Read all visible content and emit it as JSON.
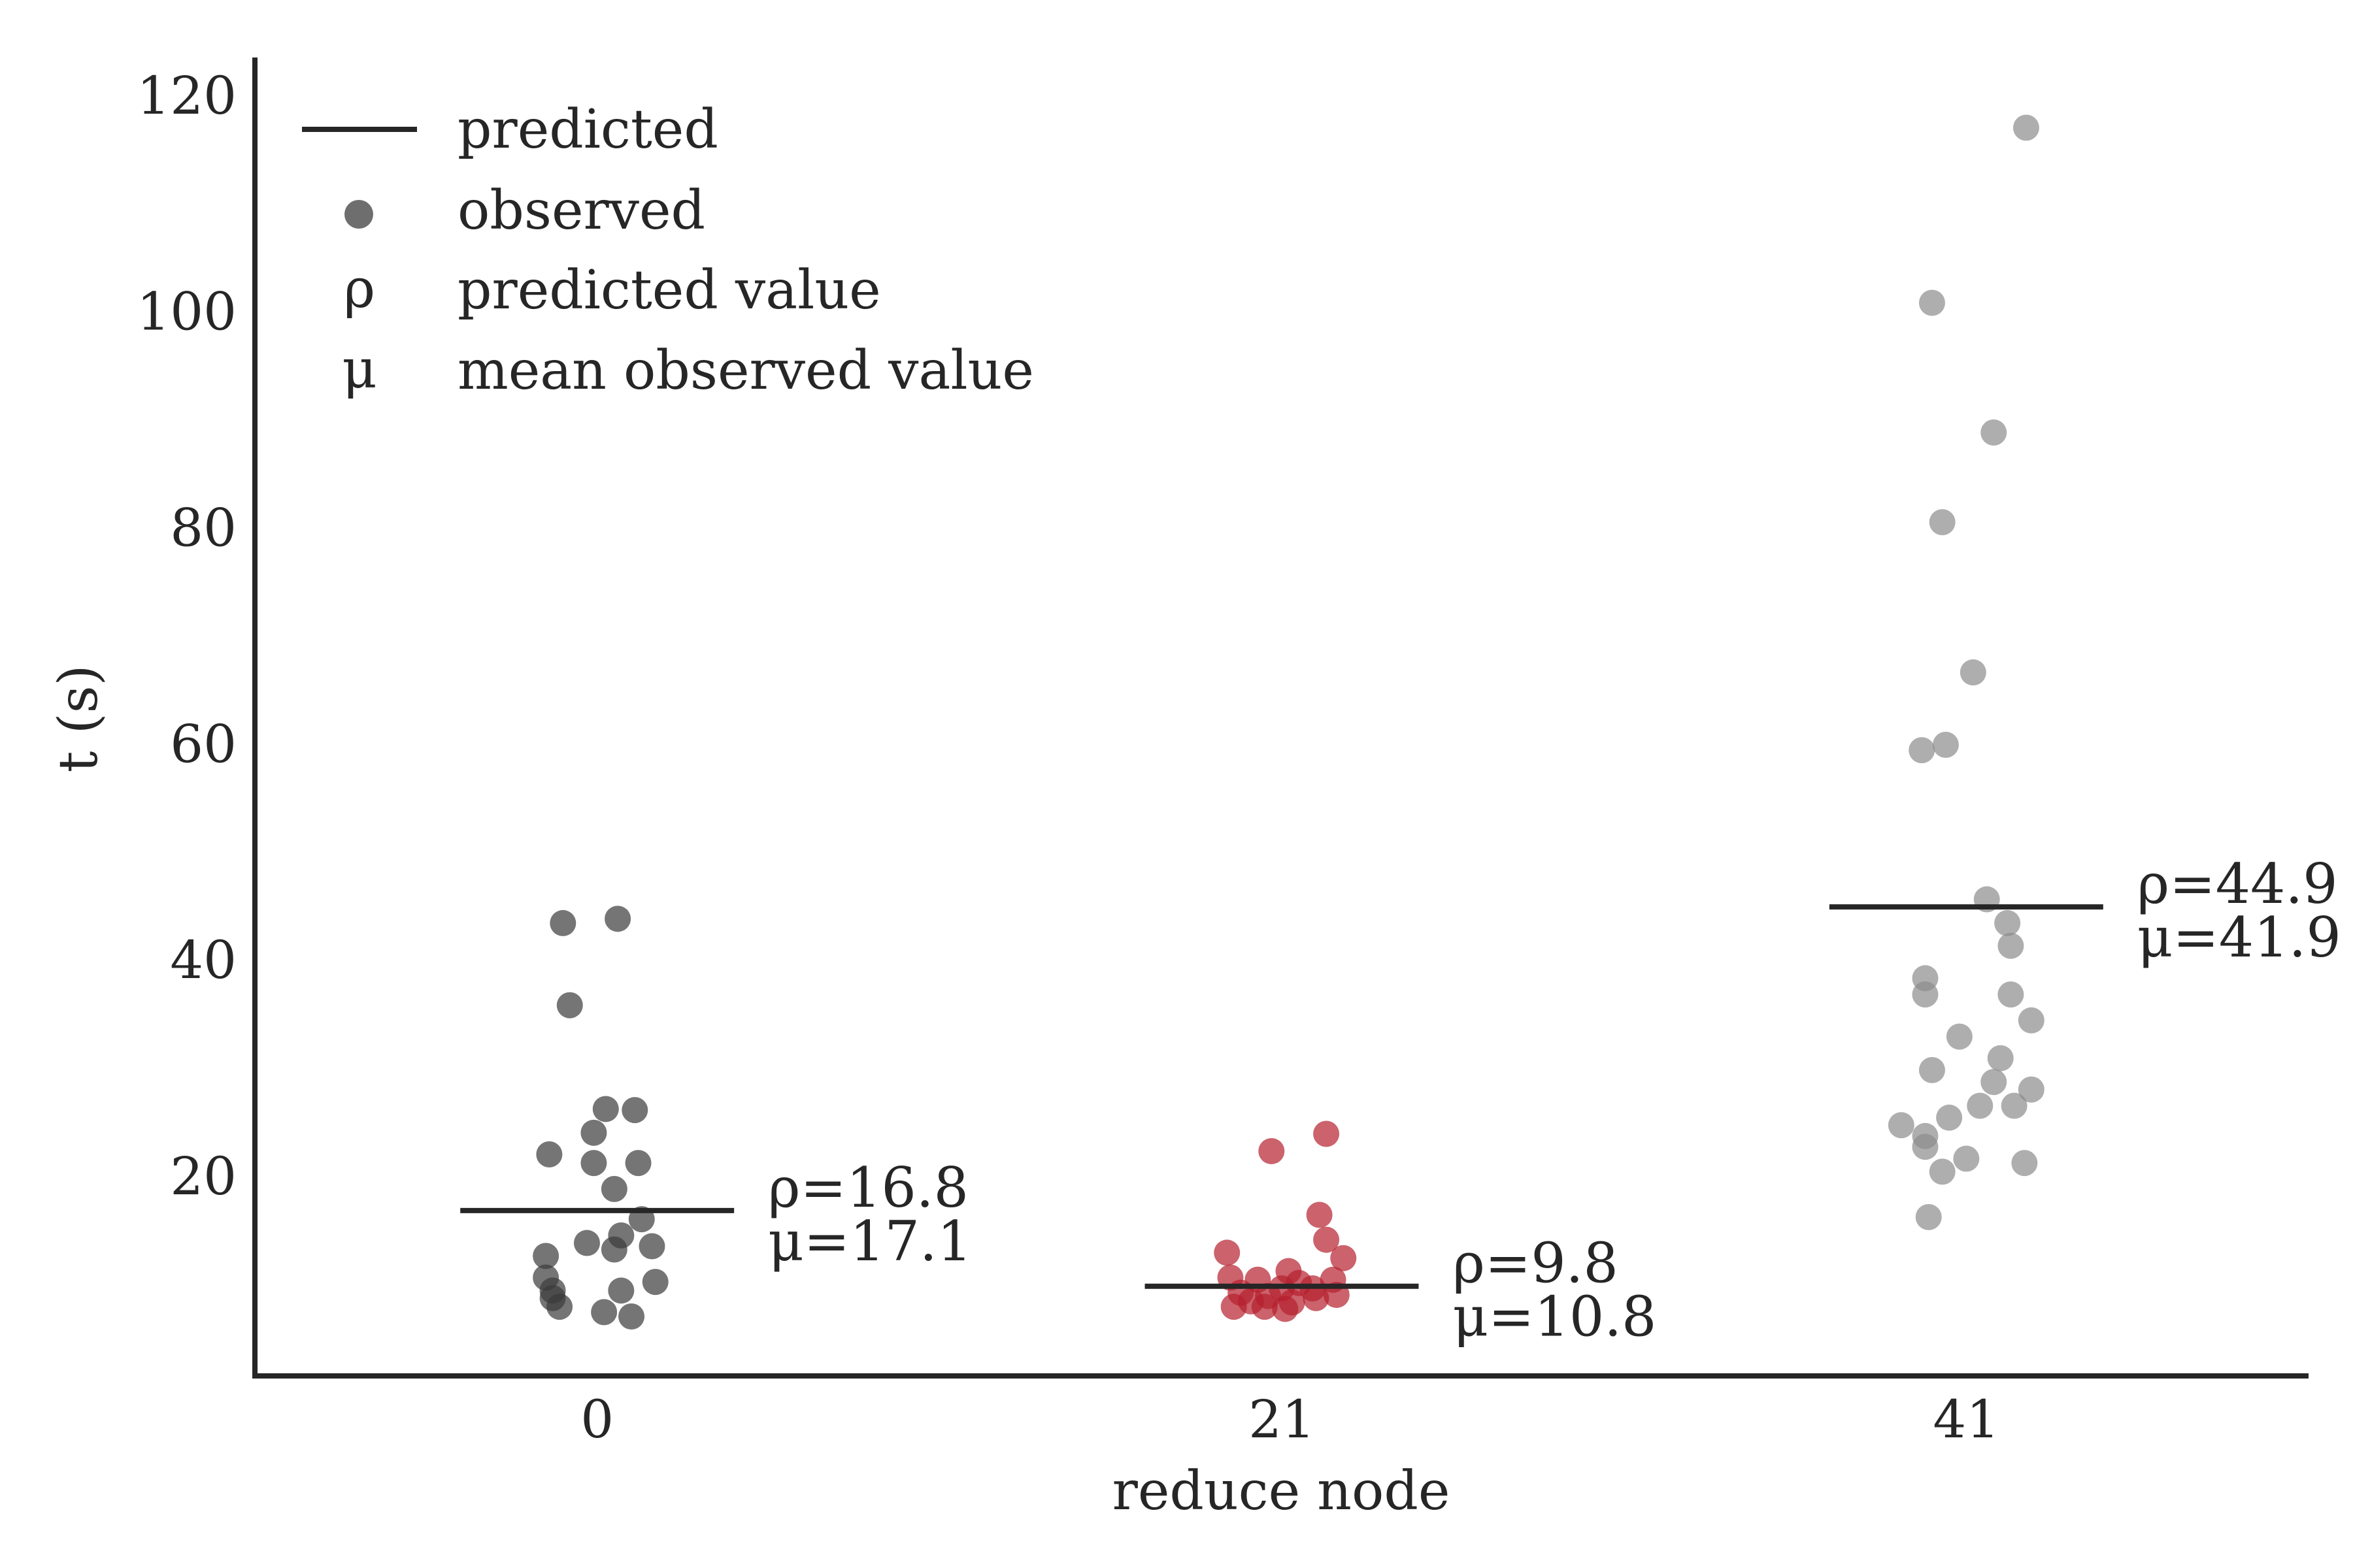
{
  "chart_data": {
    "type": "scatter",
    "xlabel": "reduce node",
    "ylabel": "t (s)",
    "categories": [
      "0",
      "21",
      "41"
    ],
    "yticks": [
      "20",
      "40",
      "60",
      "80",
      "100",
      "120"
    ],
    "ylim": [
      1.5,
      123.5
    ],
    "grid": false,
    "legend_position": "top-left",
    "legend": [
      {
        "symbol": "line",
        "label": "predicted"
      },
      {
        "symbol": "dot",
        "label": "observed"
      },
      {
        "symbol": "ρ",
        "label": "predicted value"
      },
      {
        "symbol": "μ",
        "label": "mean observed value"
      }
    ],
    "series": [
      {
        "category": "0",
        "color": "#3a3a3a",
        "predicted": 16.8,
        "mean": 17.1,
        "annotation_predicted": "ρ=16.8",
        "annotation_mean": "μ=17.1",
        "points": [
          {
            "dx": -0.2,
            "y": 43.4
          },
          {
            "dx": 0.12,
            "y": 43.8
          },
          {
            "dx": -0.16,
            "y": 35.8
          },
          {
            "dx": 0.05,
            "y": 26.2
          },
          {
            "dx": 0.22,
            "y": 26.1
          },
          {
            "dx": -0.02,
            "y": 24.0
          },
          {
            "dx": -0.28,
            "y": 22.0
          },
          {
            "dx": -0.02,
            "y": 21.2
          },
          {
            "dx": 0.24,
            "y": 21.2
          },
          {
            "dx": 0.1,
            "y": 18.8
          },
          {
            "dx": 0.26,
            "y": 16.0
          },
          {
            "dx": 0.14,
            "y": 14.5
          },
          {
            "dx": -0.06,
            "y": 13.8
          },
          {
            "dx": 0.32,
            "y": 13.5
          },
          {
            "dx": 0.1,
            "y": 13.2
          },
          {
            "dx": -0.3,
            "y": 12.6
          },
          {
            "dx": -0.3,
            "y": 10.6
          },
          {
            "dx": 0.34,
            "y": 10.2
          },
          {
            "dx": -0.26,
            "y": 9.4
          },
          {
            "dx": 0.14,
            "y": 9.4
          },
          {
            "dx": -0.26,
            "y": 8.7
          },
          {
            "dx": -0.22,
            "y": 7.9
          },
          {
            "dx": 0.04,
            "y": 7.4
          },
          {
            "dx": 0.2,
            "y": 7.0
          }
        ]
      },
      {
        "category": "21",
        "color": "#b51f2e",
        "predicted": 9.8,
        "mean": 10.8,
        "annotation_predicted": "ρ=9.8",
        "annotation_mean": "μ=10.8",
        "points": [
          {
            "dx": 0.26,
            "y": 23.9
          },
          {
            "dx": -0.06,
            "y": 22.3
          },
          {
            "dx": 0.22,
            "y": 16.4
          },
          {
            "dx": 0.26,
            "y": 14.1
          },
          {
            "dx": 0.36,
            "y": 12.4
          },
          {
            "dx": -0.32,
            "y": 12.9
          },
          {
            "dx": 0.04,
            "y": 11.2
          },
          {
            "dx": -0.14,
            "y": 10.4
          },
          {
            "dx": 0.3,
            "y": 10.4
          },
          {
            "dx": -0.3,
            "y": 10.6
          },
          {
            "dx": 0.1,
            "y": 10.1
          },
          {
            "dx": 0.0,
            "y": 9.6
          },
          {
            "dx": -0.24,
            "y": 9.2
          },
          {
            "dx": 0.18,
            "y": 9.6
          },
          {
            "dx": -0.08,
            "y": 8.9
          },
          {
            "dx": 0.32,
            "y": 9.0
          },
          {
            "dx": 0.2,
            "y": 8.7
          },
          {
            "dx": -0.18,
            "y": 8.4
          },
          {
            "dx": 0.06,
            "y": 8.3
          },
          {
            "dx": -0.28,
            "y": 7.9
          },
          {
            "dx": -0.1,
            "y": 7.9
          },
          {
            "dx": 0.02,
            "y": 7.7
          }
        ]
      },
      {
        "category": "41",
        "color": "#8c8c8c",
        "predicted": 44.9,
        "mean": 41.9,
        "annotation_predicted": "ρ=44.9",
        "annotation_mean": "μ=41.9",
        "points": [
          {
            "dx": 0.35,
            "y": 117.0
          },
          {
            "dx": -0.2,
            "y": 100.8
          },
          {
            "dx": 0.16,
            "y": 88.8
          },
          {
            "dx": -0.14,
            "y": 80.5
          },
          {
            "dx": 0.04,
            "y": 66.6
          },
          {
            "dx": -0.12,
            "y": 59.9
          },
          {
            "dx": -0.26,
            "y": 59.4
          },
          {
            "dx": 0.12,
            "y": 45.6
          },
          {
            "dx": 0.24,
            "y": 43.4
          },
          {
            "dx": 0.26,
            "y": 41.3
          },
          {
            "dx": -0.24,
            "y": 38.3
          },
          {
            "dx": -0.24,
            "y": 36.8
          },
          {
            "dx": 0.26,
            "y": 36.8
          },
          {
            "dx": 0.38,
            "y": 34.4
          },
          {
            "dx": -0.04,
            "y": 32.9
          },
          {
            "dx": 0.2,
            "y": 30.9
          },
          {
            "dx": -0.2,
            "y": 29.8
          },
          {
            "dx": 0.16,
            "y": 28.7
          },
          {
            "dx": 0.38,
            "y": 28.0
          },
          {
            "dx": 0.28,
            "y": 26.5
          },
          {
            "dx": 0.08,
            "y": 26.5
          },
          {
            "dx": -0.1,
            "y": 25.4
          },
          {
            "dx": -0.38,
            "y": 24.7
          },
          {
            "dx": -0.24,
            "y": 23.7
          },
          {
            "dx": -0.24,
            "y": 22.7
          },
          {
            "dx": 0.0,
            "y": 21.6
          },
          {
            "dx": 0.34,
            "y": 21.2
          },
          {
            "dx": -0.14,
            "y": 20.4
          },
          {
            "dx": -0.22,
            "y": 16.2
          }
        ]
      }
    ]
  }
}
